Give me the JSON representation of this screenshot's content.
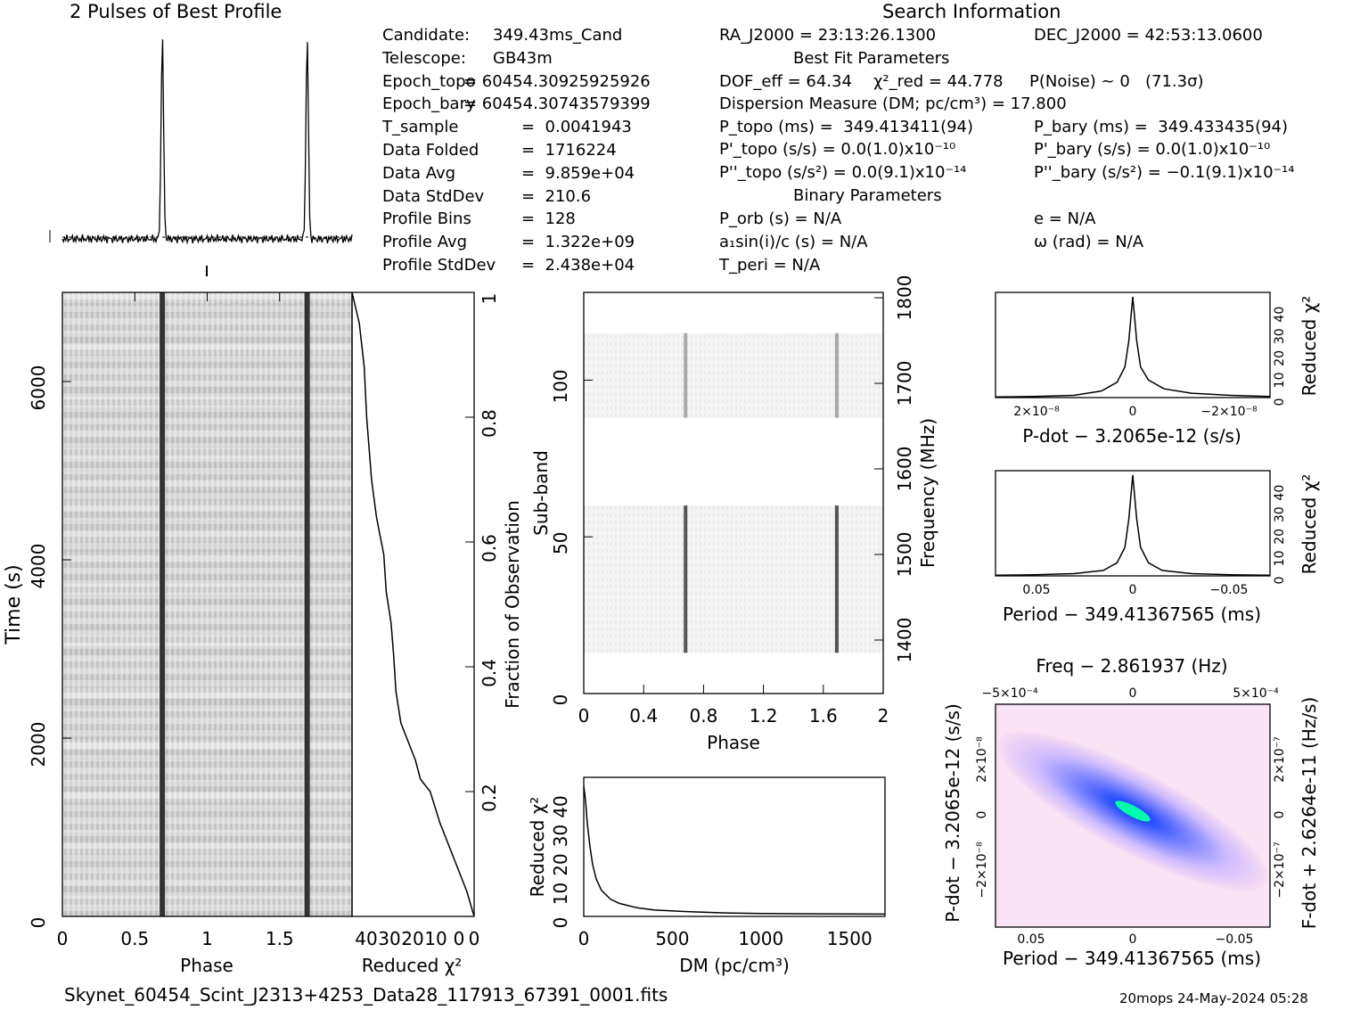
{
  "titles": {
    "profile": "2 Pulses of Best Profile",
    "search": "Search Information",
    "best_fit": "Best Fit Parameters",
    "binary": "Binary Parameters"
  },
  "info_left": [
    {
      "label": "Candidate:",
      "value": "349.43ms_Cand"
    },
    {
      "label": "Telescope:",
      "value": "GB43m"
    },
    {
      "label": "Epoch_topo",
      "value": "= 60454.30925925926"
    },
    {
      "label": "Epoch_bary",
      "value": "= 60454.30743579399"
    },
    {
      "label": "T_sample",
      "value": "=  0.0041943"
    },
    {
      "label": "Data Folded",
      "value": "=  1716224"
    },
    {
      "label": "Data Avg",
      "value": "=  9.859e+04"
    },
    {
      "label": "Data StdDev",
      "value": "=  210.6"
    },
    {
      "label": "Profile Bins",
      "value": "=  128"
    },
    {
      "label": "Profile Avg",
      "value": "=  1.322e+09"
    },
    {
      "label": "Profile StdDev",
      "value": "=  2.438e+04"
    }
  ],
  "search_info": {
    "ra": "RA_J2000 = 23:13:26.1300",
    "dec": "DEC_J2000 = 42:53:13.0600",
    "dof": "DOF_eff = 64.34",
    "chi2": "χ²_red = 44.778",
    "pnoise": "P(Noise) ~ 0   (71.3σ)",
    "dm": "Dispersion Measure (DM; pc/cm³) = 17.800",
    "ptopo": "P_topo (ms) =  349.413411(94)",
    "pbary": "P_bary (ms) =  349.433435(94)",
    "pdtopo": "P'_topo (s/s) = 0.0(1.0)x10⁻¹⁰",
    "pdbary": "P'_bary (s/s) = 0.0(1.0)x10⁻¹⁰",
    "pddtopo": "P''_topo (s/s²) = 0.0(9.1)x10⁻¹⁴",
    "pddbary": "P''_bary (s/s²) = −0.1(9.1)x10⁻¹⁴",
    "porb": "P_orb (s) = N/A",
    "ecc": "e = N/A",
    "a1": "a₁sin(i)/c (s) = N/A",
    "omega": "ω (rad) = N/A",
    "tperi": "T_peri = N/A"
  },
  "footer": {
    "filename": "Skynet_60454_Scint_J2313+4253_Data28_117913_67391_0001.fits",
    "stamp": "20mops 24-May-2024 05:28"
  },
  "chart_data": [
    {
      "type": "line",
      "name": "profile",
      "xlim": [
        0,
        2
      ],
      "peaks_phase": [
        0.69,
        1.69
      ]
    },
    {
      "type": "heatmap",
      "name": "time-phase",
      "xlabel": "Phase",
      "ylabel": "Time (s)",
      "xlim": [
        0,
        2
      ],
      "ylim": [
        0,
        7000
      ],
      "x_ticks": [
        "0",
        "0.5",
        "1",
        "1.5"
      ],
      "y_ticks": [
        "0",
        "2000",
        "4000",
        "6000"
      ]
    },
    {
      "type": "line",
      "name": "chi2-vs-time",
      "xlabel": "Reduced χ²",
      "ylabel": "Fraction of Observation",
      "xlim": [
        50,
        0
      ],
      "ylim": [
        0,
        1
      ],
      "x_ticks": [
        "40",
        "30",
        "20",
        "10",
        "0"
      ],
      "y_ticks": [
        "0.2",
        "0.4",
        "0.6",
        "0.8",
        "1"
      ],
      "x": [
        0,
        3,
        8,
        14,
        18,
        22,
        24,
        27,
        30,
        32,
        33,
        34,
        36,
        37,
        40,
        42,
        44,
        45,
        47,
        50
      ],
      "y": [
        0.0,
        0.04,
        0.09,
        0.15,
        0.2,
        0.22,
        0.25,
        0.28,
        0.31,
        0.36,
        0.42,
        0.47,
        0.52,
        0.58,
        0.64,
        0.7,
        0.8,
        0.88,
        0.95,
        1.0
      ]
    },
    {
      "type": "heatmap",
      "name": "subband-phase",
      "xlabel": "Phase",
      "ylabel": "Sub-band",
      "y2label": "Frequency (MHz)",
      "xlim": [
        0,
        2
      ],
      "ylim": [
        0,
        128
      ],
      "x_ticks": [
        "0",
        "0.4",
        "0.8",
        "1.2",
        "1.6",
        "2"
      ],
      "y_ticks": [
        "0",
        "50",
        "100"
      ],
      "y2_ticks": [
        "1400",
        "1500",
        "1600",
        "1700",
        "1800"
      ]
    },
    {
      "type": "line",
      "name": "chi2-vs-dm",
      "xlabel": "DM (pc/cm³)",
      "ylabel": "Reduced χ²",
      "xlim": [
        0,
        1700
      ],
      "ylim": [
        0,
        48
      ],
      "x_ticks": [
        "0",
        "500",
        "1000",
        "1500"
      ],
      "y_ticks": [
        "0",
        "10",
        "20",
        "30",
        "40"
      ],
      "x": [
        0,
        10,
        20,
        35,
        50,
        70,
        100,
        150,
        200,
        300,
        400,
        600,
        800,
        1000,
        1300,
        1700
      ],
      "y": [
        45,
        40,
        32,
        24,
        18,
        13,
        9,
        6,
        4.5,
        3,
        2.2,
        1.6,
        1.2,
        1.0,
        0.9,
        0.8
      ]
    },
    {
      "type": "line",
      "name": "chi2-vs-pdot",
      "xlabel": "P-dot − 3.2065e-12 (s/s)",
      "ylabel": "Reduced χ²",
      "x_ticks": [
        "2×10⁻⁸",
        "0",
        "−2×10⁻⁸"
      ],
      "y_ticks": [
        "0",
        "10",
        "20",
        "30",
        "40"
      ],
      "x": [
        -3.5,
        -2.5,
        -1.5,
        -0.8,
        -0.4,
        -0.2,
        -0.1,
        0,
        0.1,
        0.2,
        0.4,
        0.8,
        1.5,
        2.5,
        3.5
      ],
      "y": [
        0.5,
        1,
        2,
        4,
        8,
        14,
        26,
        46,
        26,
        14,
        7,
        3,
        1,
        0.5,
        0.3
      ]
    },
    {
      "type": "line",
      "name": "chi2-vs-period",
      "xlabel": "Period − 349.41367565 (ms)",
      "ylabel": "Reduced χ²",
      "x_ticks": [
        "0.05",
        "0",
        "−0.05"
      ],
      "y_ticks": [
        "0",
        "10",
        "20",
        "30",
        "40"
      ],
      "x": [
        -0.07,
        -0.05,
        -0.03,
        -0.015,
        -0.008,
        -0.004,
        -0.002,
        0,
        0.002,
        0.004,
        0.008,
        0.015,
        0.03,
        0.05,
        0.07
      ],
      "y": [
        0.3,
        0.5,
        1,
        2.5,
        6,
        13,
        26,
        46,
        26,
        13,
        6,
        2.5,
        1,
        0.5,
        0.3
      ]
    },
    {
      "type": "heatmap",
      "name": "period-pdot",
      "title": "Freq − 2.861937 (Hz)",
      "xlabel": "Period − 349.41367565 (ms)",
      "ylabel": "P-dot − 3.2065e-12 (s/s)",
      "y2label": "F-dot + 2.6264e-11 (Hz/s)",
      "x_ticks": [
        "0.05",
        "0",
        "−0.05"
      ],
      "top_ticks": [
        "−5×10⁻⁴",
        "0",
        "5×10⁻⁴"
      ],
      "y_ticks": [
        "2×10⁻⁸",
        "0",
        "−2×10⁻⁸"
      ],
      "y2_ticks": [
        "2×10⁻⁷",
        "0",
        "−2×10⁻⁷"
      ]
    }
  ]
}
